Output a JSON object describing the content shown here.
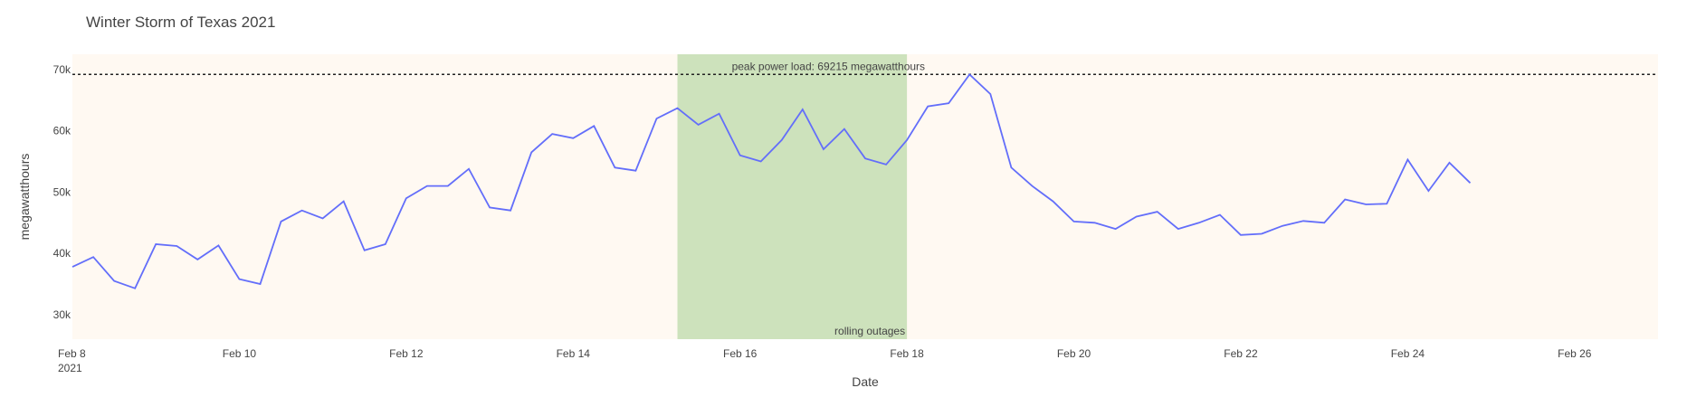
{
  "chart_data": {
    "type": "line",
    "title": "Winter Storm of Texas 2021",
    "xlabel": "Date",
    "ylabel": "megawatthours",
    "x_start": "2021-02-08",
    "x_end": "2021-02-27",
    "xlim": [
      "2021-02-08",
      "2021-02-27"
    ],
    "ylim": [
      26000,
      72500
    ],
    "grid": false,
    "colors": {
      "line": "#636efa",
      "plot_background": "#fff9f2",
      "outage_band": "#b2d59e",
      "peak_line": "#222222"
    },
    "x_ticks": [
      {
        "date": "2021-02-08",
        "label": "Feb 8",
        "sublabel": "2021"
      },
      {
        "date": "2021-02-10",
        "label": "Feb 10"
      },
      {
        "date": "2021-02-12",
        "label": "Feb 12"
      },
      {
        "date": "2021-02-14",
        "label": "Feb 14"
      },
      {
        "date": "2021-02-16",
        "label": "Feb 16"
      },
      {
        "date": "2021-02-18",
        "label": "Feb 18"
      },
      {
        "date": "2021-02-20",
        "label": "Feb 20"
      },
      {
        "date": "2021-02-22",
        "label": "Feb 22"
      },
      {
        "date": "2021-02-24",
        "label": "Feb 24"
      },
      {
        "date": "2021-02-26",
        "label": "Feb 26"
      }
    ],
    "y_ticks": [
      {
        "value": 30000,
        "label": "30k"
      },
      {
        "value": 40000,
        "label": "40k"
      },
      {
        "value": 50000,
        "label": "50k"
      },
      {
        "value": 60000,
        "label": "60k"
      },
      {
        "value": 70000,
        "label": "70k"
      }
    ],
    "peak": {
      "value": 69215,
      "label": "peak power load: 69215 megawatthours"
    },
    "outage_band": {
      "start": "2021-02-15 06:00",
      "end": "2021-02-18 00:00",
      "label": "rolling outages"
    },
    "series": [
      {
        "points": [
          [
            "2021-02-08 00:00",
            37800
          ],
          [
            "2021-02-08 06:00",
            39400
          ],
          [
            "2021-02-08 12:00",
            35500
          ],
          [
            "2021-02-08 18:00",
            34300
          ],
          [
            "2021-02-09 00:00",
            41500
          ],
          [
            "2021-02-09 06:00",
            41200
          ],
          [
            "2021-02-09 12:00",
            39000
          ],
          [
            "2021-02-09 18:00",
            41300
          ],
          [
            "2021-02-10 00:00",
            35800
          ],
          [
            "2021-02-10 06:00",
            35000
          ],
          [
            "2021-02-10 12:00",
            45200
          ],
          [
            "2021-02-10 18:00",
            47000
          ],
          [
            "2021-02-11 00:00",
            45700
          ],
          [
            "2021-02-11 06:00",
            48500
          ],
          [
            "2021-02-11 12:00",
            40500
          ],
          [
            "2021-02-11 18:00",
            41500
          ],
          [
            "2021-02-12 00:00",
            49000
          ],
          [
            "2021-02-12 06:00",
            51000
          ],
          [
            "2021-02-12 12:00",
            51000
          ],
          [
            "2021-02-12 18:00",
            53800
          ],
          [
            "2021-02-13 00:00",
            47500
          ],
          [
            "2021-02-13 06:00",
            47000
          ],
          [
            "2021-02-13 12:00",
            56500
          ],
          [
            "2021-02-13 18:00",
            59500
          ],
          [
            "2021-02-14 00:00",
            58800
          ],
          [
            "2021-02-14 06:00",
            60800
          ],
          [
            "2021-02-14 12:00",
            54000
          ],
          [
            "2021-02-14 18:00",
            53500
          ],
          [
            "2021-02-15 00:00",
            62000
          ],
          [
            "2021-02-15 06:00",
            63700
          ],
          [
            "2021-02-15 12:00",
            61000
          ],
          [
            "2021-02-15 18:00",
            62800
          ],
          [
            "2021-02-16 00:00",
            56000
          ],
          [
            "2021-02-16 06:00",
            55000
          ],
          [
            "2021-02-16 12:00",
            58500
          ],
          [
            "2021-02-16 18:00",
            63500
          ],
          [
            "2021-02-17 00:00",
            57000
          ],
          [
            "2021-02-17 06:00",
            60300
          ],
          [
            "2021-02-17 12:00",
            55500
          ],
          [
            "2021-02-17 18:00",
            54500
          ],
          [
            "2021-02-18 00:00",
            58500
          ],
          [
            "2021-02-18 06:00",
            64000
          ],
          [
            "2021-02-18 12:00",
            64500
          ],
          [
            "2021-02-18 18:00",
            69200
          ],
          [
            "2021-02-19 00:00",
            66000
          ],
          [
            "2021-02-19 06:00",
            54000
          ],
          [
            "2021-02-19 12:00",
            51000
          ],
          [
            "2021-02-19 18:00",
            48500
          ],
          [
            "2021-02-20 00:00",
            45200
          ],
          [
            "2021-02-20 06:00",
            45000
          ],
          [
            "2021-02-20 12:00",
            44000
          ],
          [
            "2021-02-20 18:00",
            46000
          ],
          [
            "2021-02-21 00:00",
            46800
          ],
          [
            "2021-02-21 06:00",
            44000
          ],
          [
            "2021-02-21 12:00",
            45000
          ],
          [
            "2021-02-21 18:00",
            46300
          ],
          [
            "2021-02-22 00:00",
            43000
          ],
          [
            "2021-02-22 06:00",
            43200
          ],
          [
            "2021-02-22 12:00",
            44500
          ],
          [
            "2021-02-22 18:00",
            45300
          ],
          [
            "2021-02-23 00:00",
            45000
          ],
          [
            "2021-02-23 06:00",
            48800
          ],
          [
            "2021-02-23 12:00",
            48000
          ],
          [
            "2021-02-23 18:00",
            48100
          ],
          [
            "2021-02-24 00:00",
            55300
          ],
          [
            "2021-02-24 06:00",
            50200
          ],
          [
            "2021-02-24 12:00",
            54800
          ],
          [
            "2021-02-24 18:00",
            51500
          ]
        ]
      }
    ]
  }
}
